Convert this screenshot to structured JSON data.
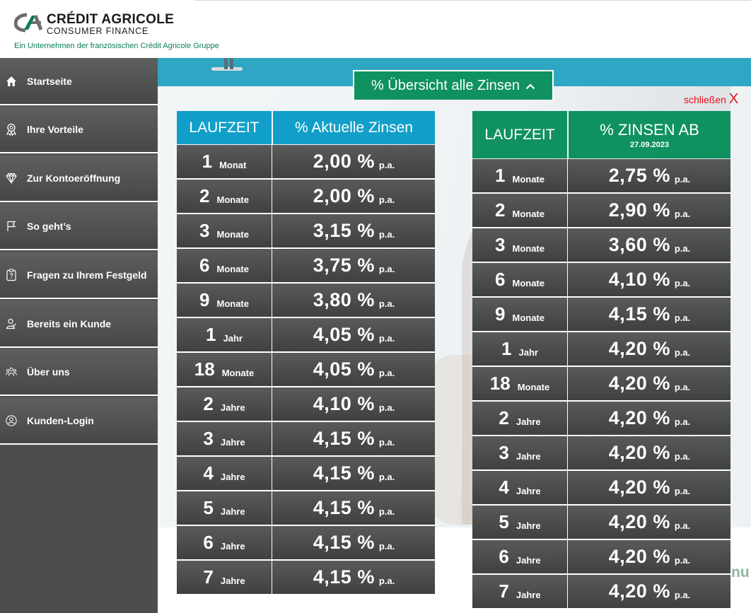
{
  "brand": {
    "name": "CRÉDIT AGRICOLE",
    "sub": "CONSUMER FINANCE",
    "tagline": "Ein Unternehmen der französischen Crédit Agricole Gruppe",
    "color": "#0a7d54"
  },
  "sidebar": {
    "items": [
      {
        "label": "Startseite",
        "icon": "home-icon"
      },
      {
        "label": "Ihre Vorteile",
        "icon": "award-icon"
      },
      {
        "label": "Zur Kontoeröffnung",
        "icon": "diamond-icon"
      },
      {
        "label": "So geht’s",
        "icon": "flag-icon"
      },
      {
        "label": "Fragen zu Ihrem Festgeld",
        "icon": "question-icon"
      },
      {
        "label": "Bereits ein Kunde",
        "icon": "customer-icon"
      },
      {
        "label": "Über uns",
        "icon": "team-icon"
      },
      {
        "label": "Kunden-Login",
        "icon": "user-icon"
      }
    ]
  },
  "overview": {
    "button_label": "% Übersicht alle Zinsen",
    "close_label": "schließen",
    "close_x": "X"
  },
  "edge_text": "nu",
  "colors": {
    "accent_green": "#0f9160",
    "accent_blue": "#119fca",
    "close_red": "#e4101b"
  },
  "table_current": {
    "col_term": "LAUFZEIT",
    "col_rate": "% Aktuelle Zinsen",
    "rows": [
      {
        "num": "1",
        "unit": "Monat",
        "rate": "2,00 %",
        "pa": "p.a."
      },
      {
        "num": "2",
        "unit": "Monate",
        "rate": "2,00 %",
        "pa": "p.a."
      },
      {
        "num": "3",
        "unit": "Monate",
        "rate": "3,15 %",
        "pa": "p.a."
      },
      {
        "num": "6",
        "unit": "Monate",
        "rate": "3,75 %",
        "pa": "p.a."
      },
      {
        "num": "9",
        "unit": "Monate",
        "rate": "3,80 %",
        "pa": "p.a."
      },
      {
        "num": "1",
        "unit": "Jahr",
        "rate": "4,05 %",
        "pa": "p.a."
      },
      {
        "num": "18",
        "unit": "Monate",
        "rate": "4,05 %",
        "pa": "p.a."
      },
      {
        "num": "2",
        "unit": "Jahre",
        "rate": "4,10 %",
        "pa": "p.a."
      },
      {
        "num": "3",
        "unit": "Jahre",
        "rate": "4,15 %",
        "pa": "p.a."
      },
      {
        "num": "4",
        "unit": "Jahre",
        "rate": "4,15 %",
        "pa": "p.a."
      },
      {
        "num": "5",
        "unit": "Jahre",
        "rate": "4,15 %",
        "pa": "p.a."
      },
      {
        "num": "6",
        "unit": "Jahre",
        "rate": "4,15 %",
        "pa": "p.a."
      },
      {
        "num": "7",
        "unit": "Jahre",
        "rate": "4,15 %",
        "pa": "p.a."
      }
    ]
  },
  "table_future": {
    "col_term": "LAUFZEIT",
    "col_rate": "% ZINSEN AB",
    "col_rate_date": "27.09.2023",
    "rows": [
      {
        "num": "1",
        "unit": "Monate",
        "rate": "2,75 %",
        "pa": "p.a."
      },
      {
        "num": "2",
        "unit": "Monate",
        "rate": "2,90 %",
        "pa": "p.a."
      },
      {
        "num": "3",
        "unit": "Monate",
        "rate": "3,60 %",
        "pa": "p.a."
      },
      {
        "num": "6",
        "unit": "Monate",
        "rate": "4,10 %",
        "pa": "p.a."
      },
      {
        "num": "9",
        "unit": "Monate",
        "rate": "4,15 %",
        "pa": "p.a."
      },
      {
        "num": "1",
        "unit": "Jahr",
        "rate": "4,20 %",
        "pa": "p.a."
      },
      {
        "num": "18",
        "unit": "Monate",
        "rate": "4,20 %",
        "pa": "p.a."
      },
      {
        "num": "2",
        "unit": "Jahre",
        "rate": "4,20 %",
        "pa": "p.a."
      },
      {
        "num": "3",
        "unit": "Jahre",
        "rate": "4,20 %",
        "pa": "p.a."
      },
      {
        "num": "4",
        "unit": "Jahre",
        "rate": "4,20 %",
        "pa": "p.a."
      },
      {
        "num": "5",
        "unit": "Jahre",
        "rate": "4,20 %",
        "pa": "p.a."
      },
      {
        "num": "6",
        "unit": "Jahre",
        "rate": "4,20 %",
        "pa": "p.a."
      },
      {
        "num": "7",
        "unit": "Jahre",
        "rate": "4,20 %",
        "pa": "p.a."
      }
    ]
  }
}
